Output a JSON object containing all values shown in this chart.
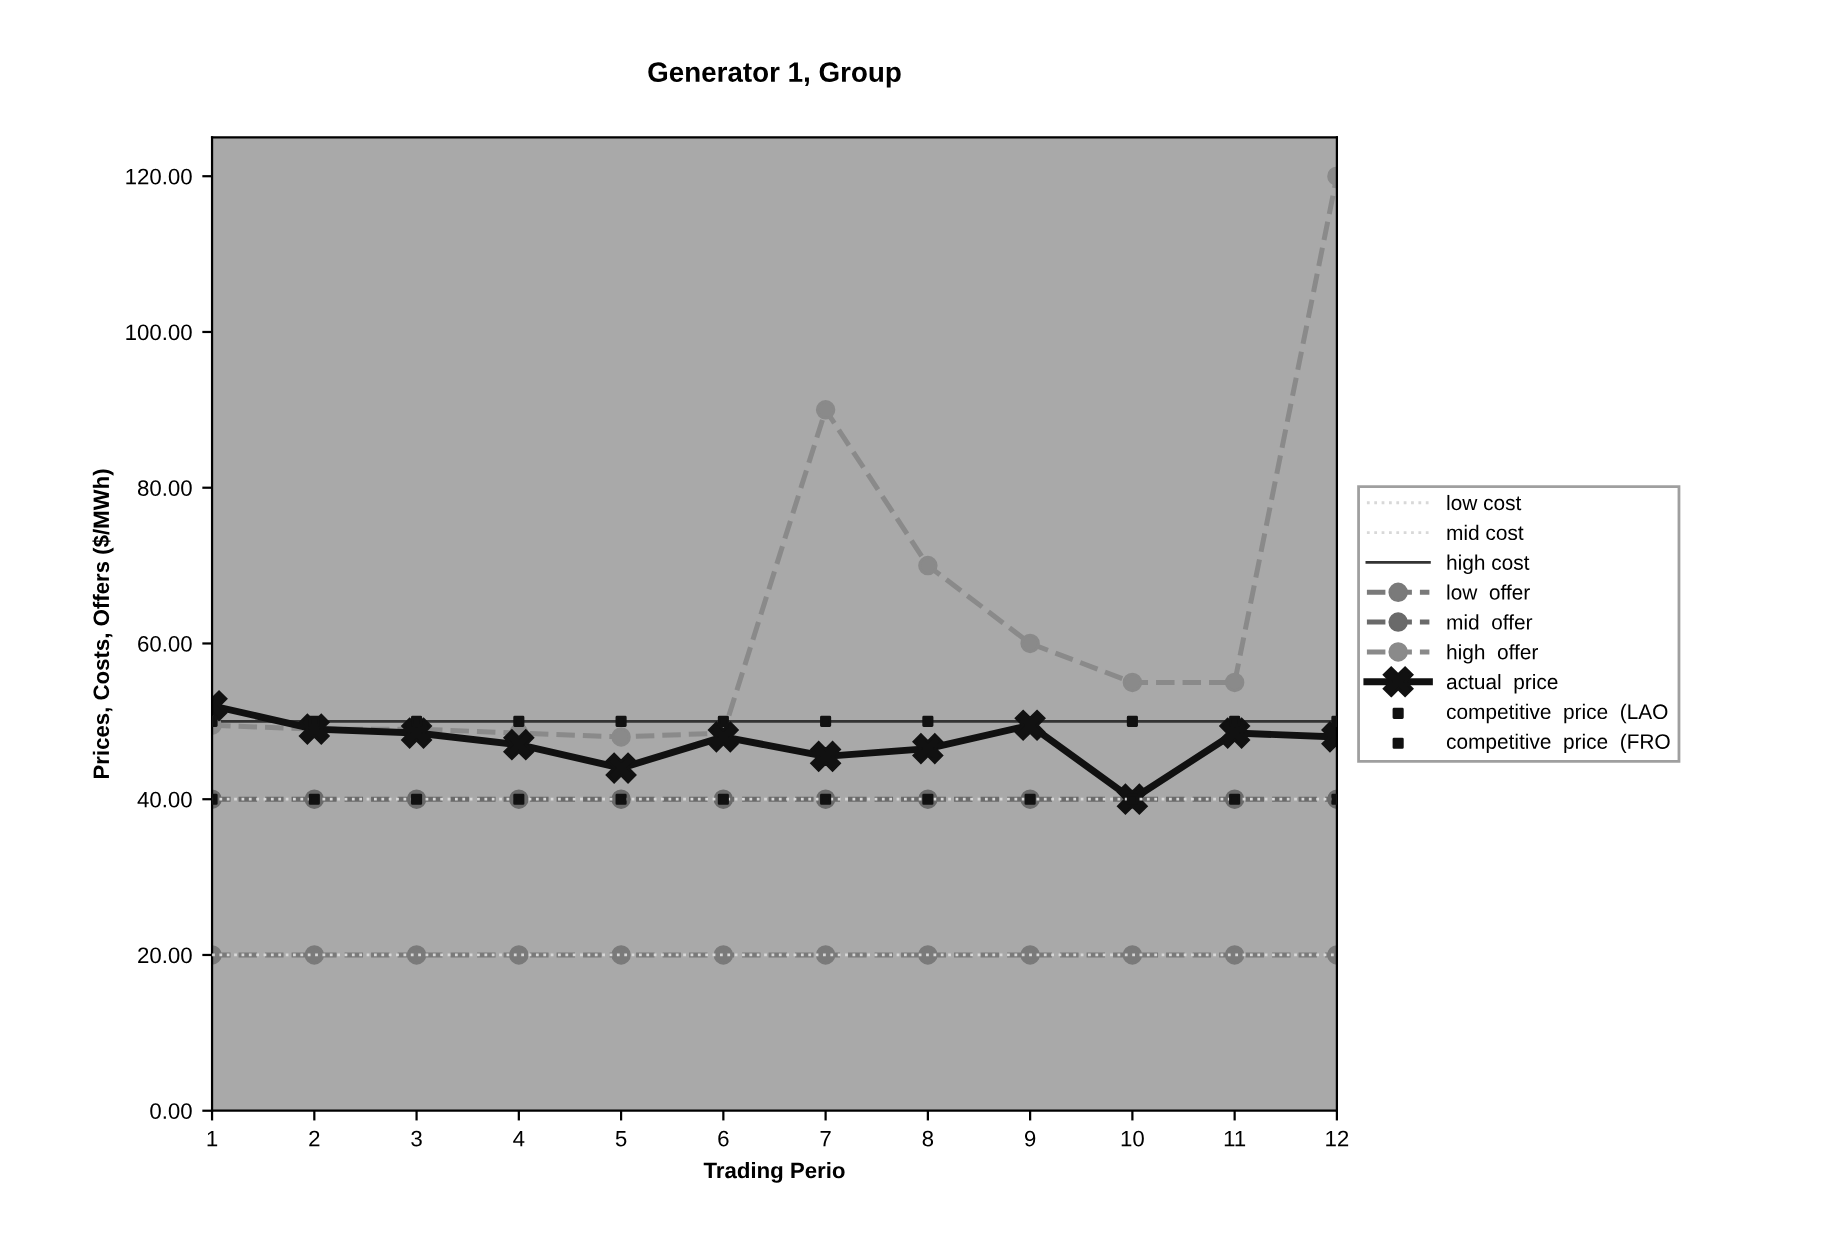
{
  "chart_data": {
    "type": "line",
    "title": "Generator 1, Group",
    "xlabel": "Trading Perio",
    "ylabel": "Prices, Costs, Offers ($/MWh)",
    "categories": [
      "1",
      "2",
      "3",
      "4",
      "5",
      "6",
      "7",
      "8",
      "9",
      "10",
      "11",
      "12"
    ],
    "ylim": [
      0,
      125
    ],
    "yticks": [
      {
        "value": 0,
        "label": "0.00"
      },
      {
        "value": 20,
        "label": "20.00"
      },
      {
        "value": 40,
        "label": "40.00"
      },
      {
        "value": 60,
        "label": "60.00"
      },
      {
        "value": 80,
        "label": "80.00"
      },
      {
        "value": 100,
        "label": "100.00"
      },
      {
        "value": 120,
        "label": "120.00"
      }
    ],
    "grid": false,
    "legend": "right",
    "series": [
      {
        "name": "low cost",
        "color": "#d8d8d8",
        "line_style": "dotted",
        "marker": "none",
        "values": [
          20,
          20,
          20,
          20,
          20,
          20,
          20,
          20,
          20,
          20,
          20,
          20
        ]
      },
      {
        "name": "mid cost",
        "color": "#d8d8d8",
        "line_style": "dotted",
        "marker": "none",
        "values": [
          40,
          40,
          40,
          40,
          40,
          40,
          40,
          40,
          40,
          40,
          40,
          40
        ]
      },
      {
        "name": "high cost",
        "color": "#333333",
        "line_style": "solid",
        "marker": "none",
        "values": [
          50,
          50,
          50,
          50,
          50,
          50,
          50,
          50,
          50,
          50,
          50,
          50
        ]
      },
      {
        "name": "low  offer",
        "color": "#7a7a7a",
        "line_style": "dashed",
        "marker": "circle",
        "values": [
          20,
          20,
          20,
          20,
          20,
          20,
          20,
          20,
          20,
          20,
          20,
          20
        ]
      },
      {
        "name": "mid  offer",
        "color": "#6a6a6a",
        "line_style": "dashed",
        "marker": "circle",
        "values": [
          40,
          40,
          40,
          40,
          40,
          40,
          40,
          40,
          40,
          40,
          40,
          40
        ]
      },
      {
        "name": "high  offer",
        "color": "#8a8a8a",
        "line_style": "dashed",
        "marker": "circle",
        "values": [
          49.5,
          49,
          49,
          48.5,
          48,
          48.5,
          90,
          70,
          60,
          55,
          55,
          120
        ]
      },
      {
        "name": "actual  price",
        "color": "#111111",
        "line_style": "solid",
        "marker": "cross",
        "values": [
          52,
          49,
          48.5,
          47,
          44,
          48,
          45.5,
          46.5,
          49.5,
          40,
          48.5,
          48
        ]
      },
      {
        "name": "competitive  price  (LAO",
        "type": "scatter",
        "color": "#111111",
        "marker": "square",
        "values": [
          50,
          50,
          50,
          50,
          50,
          50,
          50,
          50,
          null,
          50,
          50,
          50
        ]
      },
      {
        "name": "competitive  price  (FRO",
        "type": "scatter",
        "color": "#111111",
        "marker": "square",
        "values": [
          40,
          40,
          40,
          40,
          40,
          40,
          40,
          40,
          40,
          40,
          40,
          40
        ]
      }
    ]
  }
}
